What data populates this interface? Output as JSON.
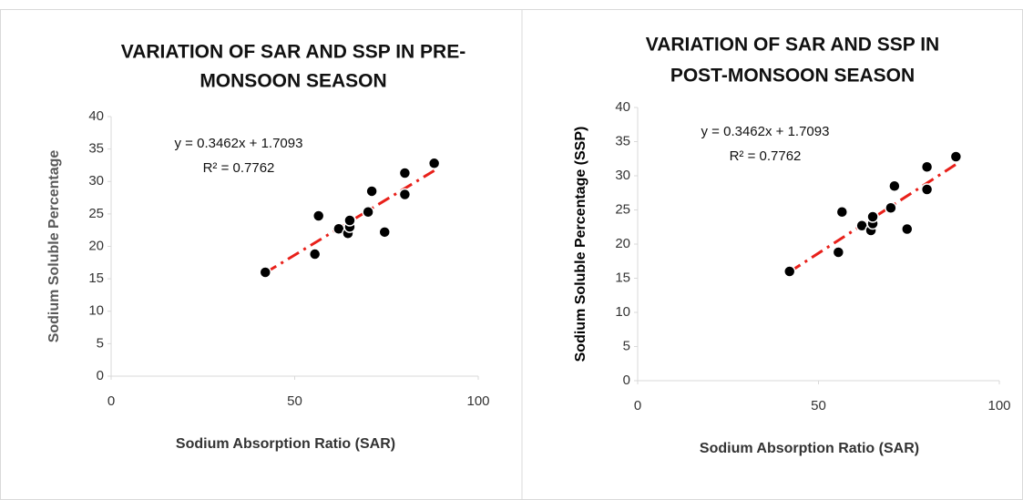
{
  "chart_data": [
    {
      "type": "scatter",
      "title": [
        "VARIATION OF SAR AND SSP IN PRE-",
        "MONSOON SEASON"
      ],
      "xlabel": "Sodium Absorption Ratio (SAR)",
      "ylabel": "Sodium Soluble Percentage",
      "ylabel_color": "#595959",
      "annotations": [
        "y = 0.3462x + 1.7093",
        "R² = 0.7762"
      ],
      "x": [
        42,
        55.5,
        56.5,
        62,
        64.5,
        65,
        65,
        70,
        71,
        74.5,
        80,
        80,
        88
      ],
      "values": [
        16,
        18.8,
        24.7,
        22.7,
        22,
        23,
        24,
        25.3,
        28.5,
        22.2,
        28,
        31.3,
        32.8
      ],
      "color": "#000000",
      "trendline_color": "#e8201a",
      "xlim": [
        0,
        100
      ],
      "xticks": [
        0,
        50,
        100
      ],
      "ylim": [
        0,
        40
      ],
      "yticks": [
        0,
        5,
        10,
        15,
        20,
        25,
        30,
        35,
        40
      ]
    },
    {
      "type": "scatter",
      "title": [
        "VARIATION OF SAR AND SSP IN",
        "POST-MONSOON SEASON"
      ],
      "xlabel": "Sodium Absorption Ratio (SAR)",
      "ylabel": "Sodium Soluble Percentage (SSP)",
      "ylabel_color": "#000000",
      "annotations": [
        "y = 0.3462x + 1.7093",
        "R² = 0.7762"
      ],
      "x": [
        42,
        55.5,
        56.5,
        62,
        64.5,
        65,
        65,
        70,
        71,
        74.5,
        80,
        80,
        88
      ],
      "values": [
        16,
        18.8,
        24.7,
        22.7,
        22,
        23,
        24,
        25.3,
        28.5,
        22.2,
        28,
        31.3,
        32.8
      ],
      "color": "#000000",
      "trendline_color": "#e8201a",
      "xlim": [
        0,
        100
      ],
      "xticks": [
        0,
        50,
        100
      ],
      "ylim": [
        0,
        40
      ],
      "yticks": [
        0,
        5,
        10,
        15,
        20,
        25,
        30,
        35,
        40
      ]
    }
  ]
}
